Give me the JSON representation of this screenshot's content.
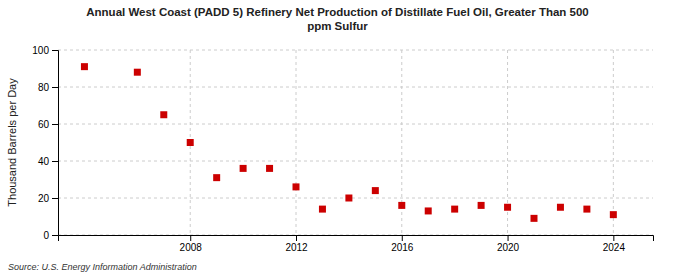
{
  "chart_data": {
    "type": "scatter",
    "title": "Annual West Coast (PADD 5) Refinery Net Production of Distillate Fuel Oil, Greater Than 500\nppm Sulfur",
    "ylabel": "Thousand Barrels per Day",
    "source": "Source: U.S. Energy Information Administration",
    "x": [
      2004,
      2006,
      2007,
      2008,
      2009,
      2010,
      2011,
      2012,
      2013,
      2014,
      2015,
      2016,
      2017,
      2018,
      2019,
      2020,
      2021,
      2022,
      2023,
      2024
    ],
    "values": [
      91,
      88,
      65,
      50,
      31,
      36,
      36,
      26,
      14,
      20,
      24,
      16,
      13,
      14,
      16,
      15,
      9,
      15,
      14,
      11
    ],
    "color": "#cc0000",
    "marker": "square",
    "xlim": [
      2003,
      2025.5
    ],
    "ylim": [
      0,
      100
    ],
    "xticks": [
      2008,
      2012,
      2016,
      2020,
      2024
    ],
    "yticks": [
      0,
      20,
      40,
      60,
      80,
      100
    ],
    "grid": true
  }
}
